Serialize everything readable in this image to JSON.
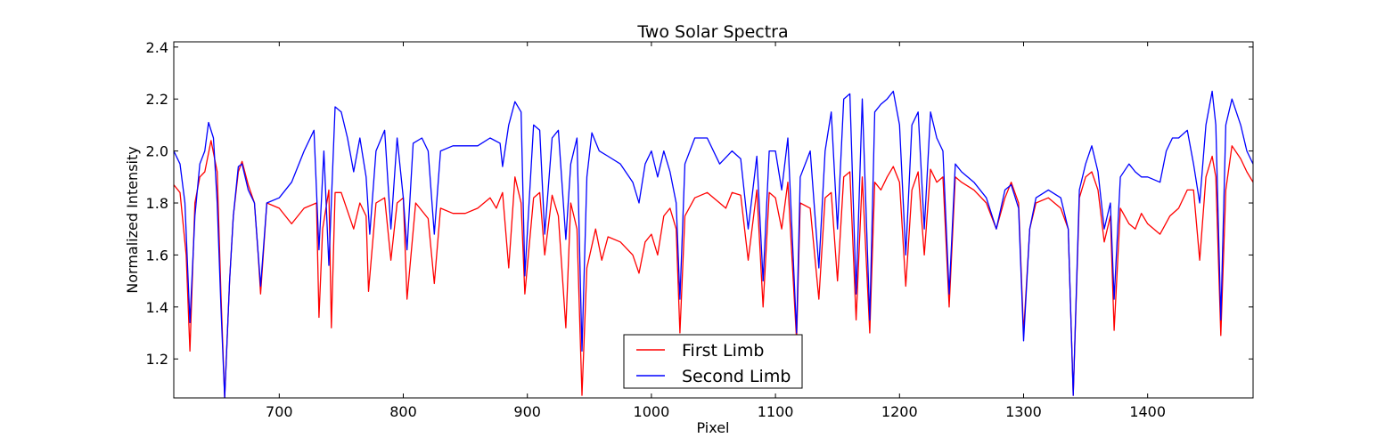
{
  "chart_data": {
    "type": "line",
    "title": "Two Solar Spectra",
    "xlabel": "Pixel",
    "ylabel": "Normalized Intensity",
    "xlim": [
      615,
      1485
    ],
    "ylim": [
      1.05,
      2.42
    ],
    "xticks": [
      700,
      800,
      900,
      1000,
      1100,
      1200,
      1300,
      1400
    ],
    "yticks": [
      1.2,
      1.4,
      1.6,
      1.8,
      2.0,
      2.2,
      2.4
    ],
    "ytick_labels": [
      "1.2",
      "1.4",
      "1.6",
      "1.8",
      "2.0",
      "2.2",
      "2.4"
    ],
    "legend_position": "bottom-center",
    "series": [
      {
        "name": "First Limb",
        "color": "#ff0000",
        "points": [
          [
            615,
            1.87
          ],
          [
            620,
            1.84
          ],
          [
            625,
            1.6
          ],
          [
            628,
            1.23
          ],
          [
            632,
            1.8
          ],
          [
            636,
            1.9
          ],
          [
            640,
            1.92
          ],
          [
            645,
            2.04
          ],
          [
            650,
            1.92
          ],
          [
            653,
            1.45
          ],
          [
            656,
            1.05
          ],
          [
            660,
            1.5
          ],
          [
            663,
            1.75
          ],
          [
            667,
            1.92
          ],
          [
            670,
            1.96
          ],
          [
            675,
            1.87
          ],
          [
            680,
            1.8
          ],
          [
            683,
            1.6
          ],
          [
            685,
            1.45
          ],
          [
            690,
            1.8
          ],
          [
            700,
            1.78
          ],
          [
            710,
            1.72
          ],
          [
            720,
            1.78
          ],
          [
            730,
            1.8
          ],
          [
            732,
            1.36
          ],
          [
            735,
            1.7
          ],
          [
            740,
            1.85
          ],
          [
            742,
            1.32
          ],
          [
            745,
            1.84
          ],
          [
            750,
            1.84
          ],
          [
            760,
            1.7
          ],
          [
            765,
            1.8
          ],
          [
            770,
            1.75
          ],
          [
            772,
            1.46
          ],
          [
            778,
            1.8
          ],
          [
            785,
            1.82
          ],
          [
            790,
            1.58
          ],
          [
            795,
            1.8
          ],
          [
            800,
            1.82
          ],
          [
            803,
            1.43
          ],
          [
            810,
            1.8
          ],
          [
            820,
            1.74
          ],
          [
            825,
            1.49
          ],
          [
            830,
            1.78
          ],
          [
            840,
            1.76
          ],
          [
            850,
            1.76
          ],
          [
            860,
            1.78
          ],
          [
            870,
            1.82
          ],
          [
            875,
            1.78
          ],
          [
            880,
            1.84
          ],
          [
            885,
            1.55
          ],
          [
            890,
            1.9
          ],
          [
            895,
            1.8
          ],
          [
            898,
            1.45
          ],
          [
            905,
            1.82
          ],
          [
            910,
            1.84
          ],
          [
            914,
            1.6
          ],
          [
            920,
            1.83
          ],
          [
            925,
            1.75
          ],
          [
            931,
            1.32
          ],
          [
            935,
            1.8
          ],
          [
            940,
            1.7
          ],
          [
            944,
            1.06
          ],
          [
            948,
            1.55
          ],
          [
            955,
            1.7
          ],
          [
            960,
            1.58
          ],
          [
            965,
            1.67
          ],
          [
            975,
            1.65
          ],
          [
            985,
            1.6
          ],
          [
            990,
            1.53
          ],
          [
            995,
            1.65
          ],
          [
            1000,
            1.68
          ],
          [
            1005,
            1.6
          ],
          [
            1010,
            1.75
          ],
          [
            1015,
            1.78
          ],
          [
            1020,
            1.7
          ],
          [
            1023,
            1.3
          ],
          [
            1027,
            1.75
          ],
          [
            1035,
            1.82
          ],
          [
            1045,
            1.84
          ],
          [
            1055,
            1.8
          ],
          [
            1060,
            1.78
          ],
          [
            1065,
            1.84
          ],
          [
            1072,
            1.83
          ],
          [
            1078,
            1.58
          ],
          [
            1085,
            1.85
          ],
          [
            1090,
            1.4
          ],
          [
            1095,
            1.84
          ],
          [
            1100,
            1.82
          ],
          [
            1105,
            1.7
          ],
          [
            1110,
            1.88
          ],
          [
            1117,
            1.27
          ],
          [
            1120,
            1.8
          ],
          [
            1128,
            1.78
          ],
          [
            1135,
            1.43
          ],
          [
            1140,
            1.82
          ],
          [
            1145,
            1.84
          ],
          [
            1150,
            1.5
          ],
          [
            1155,
            1.9
          ],
          [
            1160,
            1.92
          ],
          [
            1165,
            1.35
          ],
          [
            1170,
            1.9
          ],
          [
            1176,
            1.3
          ],
          [
            1180,
            1.88
          ],
          [
            1185,
            1.85
          ],
          [
            1190,
            1.9
          ],
          [
            1195,
            1.94
          ],
          [
            1200,
            1.88
          ],
          [
            1205,
            1.48
          ],
          [
            1210,
            1.85
          ],
          [
            1215,
            1.92
          ],
          [
            1220,
            1.6
          ],
          [
            1225,
            1.93
          ],
          [
            1230,
            1.88
          ],
          [
            1235,
            1.9
          ],
          [
            1240,
            1.4
          ],
          [
            1245,
            1.9
          ],
          [
            1250,
            1.88
          ],
          [
            1260,
            1.85
          ],
          [
            1270,
            1.8
          ],
          [
            1278,
            1.7
          ],
          [
            1285,
            1.82
          ],
          [
            1290,
            1.88
          ],
          [
            1296,
            1.8
          ],
          [
            1300,
            1.3
          ],
          [
            1305,
            1.7
          ],
          [
            1310,
            1.8
          ],
          [
            1320,
            1.82
          ],
          [
            1330,
            1.78
          ],
          [
            1336,
            1.7
          ],
          [
            1340,
            1.06
          ],
          [
            1345,
            1.82
          ],
          [
            1350,
            1.9
          ],
          [
            1355,
            1.92
          ],
          [
            1360,
            1.85
          ],
          [
            1365,
            1.65
          ],
          [
            1370,
            1.75
          ],
          [
            1373,
            1.31
          ],
          [
            1378,
            1.78
          ],
          [
            1385,
            1.72
          ],
          [
            1390,
            1.7
          ],
          [
            1395,
            1.76
          ],
          [
            1400,
            1.72
          ],
          [
            1410,
            1.68
          ],
          [
            1418,
            1.75
          ],
          [
            1425,
            1.78
          ],
          [
            1432,
            1.85
          ],
          [
            1437,
            1.85
          ],
          [
            1442,
            1.58
          ],
          [
            1447,
            1.9
          ],
          [
            1452,
            1.98
          ],
          [
            1455,
            1.9
          ],
          [
            1459,
            1.29
          ],
          [
            1463,
            1.85
          ],
          [
            1468,
            2.02
          ],
          [
            1475,
            1.97
          ],
          [
            1480,
            1.92
          ],
          [
            1485,
            1.88
          ]
        ]
      },
      {
        "name": "Second Limb",
        "color": "#0000ff",
        "points": [
          [
            615,
            2.0
          ],
          [
            620,
            1.95
          ],
          [
            624,
            1.8
          ],
          [
            628,
            1.34
          ],
          [
            632,
            1.75
          ],
          [
            636,
            1.95
          ],
          [
            640,
            2.0
          ],
          [
            643,
            2.11
          ],
          [
            647,
            2.05
          ],
          [
            650,
            1.8
          ],
          [
            653,
            1.4
          ],
          [
            656,
            1.05
          ],
          [
            660,
            1.5
          ],
          [
            663,
            1.75
          ],
          [
            667,
            1.94
          ],
          [
            670,
            1.95
          ],
          [
            675,
            1.85
          ],
          [
            680,
            1.8
          ],
          [
            685,
            1.48
          ],
          [
            690,
            1.8
          ],
          [
            700,
            1.82
          ],
          [
            710,
            1.88
          ],
          [
            720,
            2.0
          ],
          [
            728,
            2.08
          ],
          [
            732,
            1.62
          ],
          [
            736,
            2.0
          ],
          [
            740,
            1.56
          ],
          [
            745,
            2.17
          ],
          [
            750,
            2.15
          ],
          [
            755,
            2.05
          ],
          [
            760,
            1.92
          ],
          [
            765,
            2.05
          ],
          [
            770,
            1.9
          ],
          [
            773,
            1.68
          ],
          [
            778,
            2.0
          ],
          [
            785,
            2.08
          ],
          [
            790,
            1.7
          ],
          [
            795,
            2.05
          ],
          [
            800,
            1.82
          ],
          [
            803,
            1.62
          ],
          [
            808,
            2.03
          ],
          [
            815,
            2.05
          ],
          [
            820,
            2.0
          ],
          [
            825,
            1.68
          ],
          [
            830,
            2.0
          ],
          [
            840,
            2.02
          ],
          [
            850,
            2.02
          ],
          [
            860,
            2.02
          ],
          [
            870,
            2.05
          ],
          [
            878,
            2.03
          ],
          [
            880,
            1.94
          ],
          [
            885,
            2.1
          ],
          [
            890,
            2.19
          ],
          [
            895,
            2.15
          ],
          [
            898,
            1.52
          ],
          [
            905,
            2.1
          ],
          [
            910,
            2.08
          ],
          [
            914,
            1.68
          ],
          [
            920,
            2.05
          ],
          [
            925,
            2.08
          ],
          [
            931,
            1.66
          ],
          [
            935,
            1.95
          ],
          [
            940,
            2.05
          ],
          [
            944,
            1.23
          ],
          [
            948,
            1.9
          ],
          [
            952,
            2.07
          ],
          [
            958,
            2.0
          ],
          [
            965,
            1.98
          ],
          [
            975,
            1.95
          ],
          [
            985,
            1.88
          ],
          [
            990,
            1.8
          ],
          [
            995,
            1.95
          ],
          [
            1000,
            2.0
          ],
          [
            1005,
            1.9
          ],
          [
            1010,
            2.0
          ],
          [
            1015,
            1.92
          ],
          [
            1020,
            1.8
          ],
          [
            1023,
            1.43
          ],
          [
            1027,
            1.95
          ],
          [
            1035,
            2.05
          ],
          [
            1045,
            2.05
          ],
          [
            1055,
            1.95
          ],
          [
            1065,
            2.0
          ],
          [
            1072,
            1.97
          ],
          [
            1078,
            1.7
          ],
          [
            1085,
            1.98
          ],
          [
            1090,
            1.5
          ],
          [
            1095,
            2.0
          ],
          [
            1100,
            2.0
          ],
          [
            1105,
            1.85
          ],
          [
            1110,
            2.05
          ],
          [
            1117,
            1.3
          ],
          [
            1120,
            1.9
          ],
          [
            1128,
            2.0
          ],
          [
            1135,
            1.55
          ],
          [
            1140,
            2.0
          ],
          [
            1145,
            2.15
          ],
          [
            1150,
            1.7
          ],
          [
            1155,
            2.2
          ],
          [
            1160,
            2.22
          ],
          [
            1165,
            1.45
          ],
          [
            1170,
            2.2
          ],
          [
            1176,
            1.35
          ],
          [
            1180,
            2.15
          ],
          [
            1185,
            2.18
          ],
          [
            1190,
            2.2
          ],
          [
            1195,
            2.23
          ],
          [
            1200,
            2.1
          ],
          [
            1205,
            1.6
          ],
          [
            1210,
            2.1
          ],
          [
            1215,
            2.15
          ],
          [
            1220,
            1.7
          ],
          [
            1225,
            2.15
          ],
          [
            1230,
            2.05
          ],
          [
            1235,
            2.0
          ],
          [
            1240,
            1.45
          ],
          [
            1245,
            1.95
          ],
          [
            1250,
            1.92
          ],
          [
            1260,
            1.88
          ],
          [
            1270,
            1.82
          ],
          [
            1278,
            1.7
          ],
          [
            1285,
            1.85
          ],
          [
            1290,
            1.87
          ],
          [
            1296,
            1.78
          ],
          [
            1300,
            1.27
          ],
          [
            1305,
            1.7
          ],
          [
            1310,
            1.82
          ],
          [
            1320,
            1.85
          ],
          [
            1330,
            1.82
          ],
          [
            1336,
            1.7
          ],
          [
            1340,
            1.06
          ],
          [
            1345,
            1.85
          ],
          [
            1350,
            1.95
          ],
          [
            1355,
            2.02
          ],
          [
            1360,
            1.92
          ],
          [
            1365,
            1.7
          ],
          [
            1370,
            1.8
          ],
          [
            1373,
            1.43
          ],
          [
            1378,
            1.9
          ],
          [
            1385,
            1.95
          ],
          [
            1390,
            1.92
          ],
          [
            1395,
            1.9
          ],
          [
            1400,
            1.9
          ],
          [
            1410,
            1.88
          ],
          [
            1415,
            2.0
          ],
          [
            1420,
            2.05
          ],
          [
            1425,
            2.05
          ],
          [
            1432,
            2.08
          ],
          [
            1437,
            1.95
          ],
          [
            1442,
            1.8
          ],
          [
            1447,
            2.1
          ],
          [
            1452,
            2.23
          ],
          [
            1455,
            2.1
          ],
          [
            1459,
            1.35
          ],
          [
            1463,
            2.1
          ],
          [
            1468,
            2.2
          ],
          [
            1475,
            2.1
          ],
          [
            1480,
            2.0
          ],
          [
            1485,
            1.95
          ]
        ]
      }
    ]
  }
}
